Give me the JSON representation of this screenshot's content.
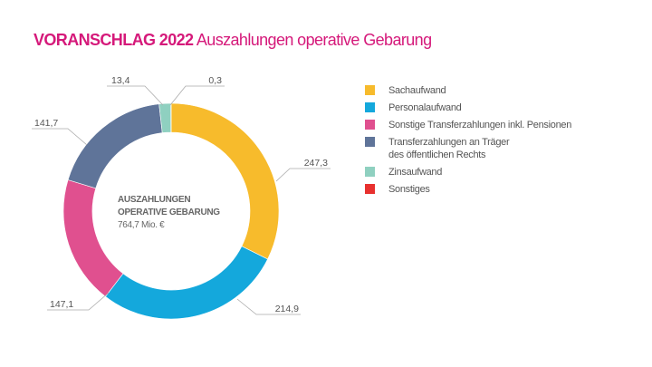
{
  "title": {
    "bold": "VORANSCHLAG 2022",
    "rest": "Auszahlungen operative Gebarung",
    "color": "#d5197a"
  },
  "chart_data": {
    "type": "pie",
    "donut": true,
    "center_label": {
      "line1": "AUSZAHLUNGEN",
      "line2": "OPERATIVE GEBARUNG",
      "total": "764,7 Mio. €"
    },
    "categories": [
      "Sachaufwand",
      "Personalaufwand",
      "Sonstige Transferzahlungen inkl. Pensionen",
      "Transferzahlungen an Träger des öffentlichen Rechts",
      "Zinsaufwand",
      "Sonstiges"
    ],
    "legend_lines": [
      [
        "Sachaufwand"
      ],
      [
        "Personalaufwand"
      ],
      [
        "Sonstige Transferzahlungen inkl. Pensionen"
      ],
      [
        "Transferzahlungen an Träger",
        "des öffentlichen Rechts"
      ],
      [
        "Zinsaufwand"
      ],
      [
        "Sonstiges"
      ]
    ],
    "values": [
      247.3,
      214.9,
      147.1,
      141.7,
      13.4,
      0.3
    ],
    "data_labels": [
      "247,3",
      "214,9",
      "147,1",
      "141,7",
      "13,4",
      "0,3"
    ],
    "colors": [
      "#f7bb2c",
      "#14a8dc",
      "#e0508f",
      "#5f7499",
      "#8fd0c0",
      "#e8312f"
    ],
    "start": "top",
    "direction": "clockwise",
    "legend_position": "right"
  }
}
